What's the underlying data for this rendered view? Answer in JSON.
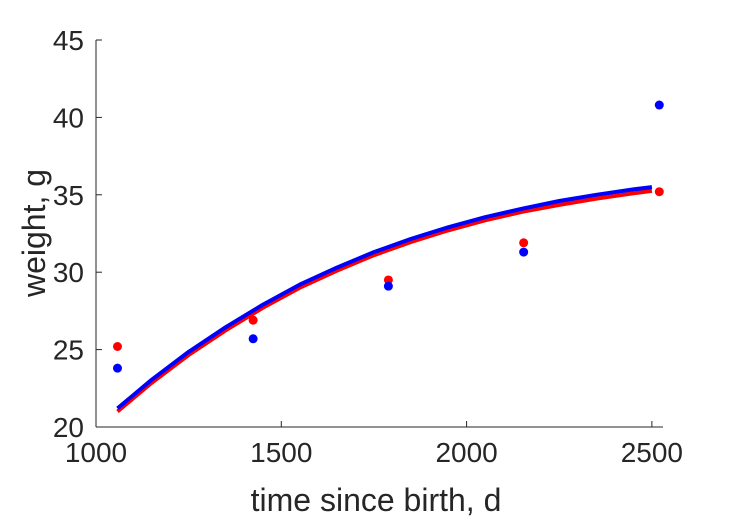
{
  "chart_data": {
    "type": "scatter",
    "title": "",
    "xlabel": "time since birth, d",
    "ylabel": "weight, g",
    "xlim": [
      1000,
      2530
    ],
    "ylim": [
      20,
      45
    ],
    "x_ticks": [
      1000,
      1500,
      2000,
      2500
    ],
    "y_ticks": [
      20,
      25,
      30,
      35,
      40,
      45
    ],
    "grid": false,
    "legend": "none",
    "series": [
      {
        "kind": "points",
        "color": "#ff0000",
        "x": [
          1058,
          1424,
          1789,
          2154,
          2520
        ],
        "y": [
          25.2,
          26.9,
          29.5,
          31.9,
          35.2
        ]
      },
      {
        "kind": "points",
        "color": "#0000ff",
        "x": [
          1058,
          1424,
          1789,
          2154,
          2520
        ],
        "y": [
          23.8,
          25.7,
          29.1,
          31.3,
          40.8
        ]
      },
      {
        "kind": "line",
        "color": "#ff0000",
        "x": [
          1058,
          1150,
          1250,
          1350,
          1450,
          1550,
          1650,
          1750,
          1850,
          1950,
          2050,
          2150,
          2250,
          2350,
          2450,
          2500
        ],
        "y": [
          21.0,
          22.85,
          24.65,
          26.25,
          27.7,
          29.0,
          30.1,
          31.1,
          31.95,
          32.7,
          33.35,
          33.9,
          34.35,
          34.75,
          35.1,
          35.25
        ]
      },
      {
        "kind": "line",
        "color": "#0000ff",
        "x": [
          1058,
          1150,
          1250,
          1350,
          1450,
          1550,
          1650,
          1750,
          1850,
          1950,
          2050,
          2150,
          2250,
          2350,
          2450,
          2500
        ],
        "y": [
          21.2,
          23.05,
          24.85,
          26.45,
          27.9,
          29.2,
          30.3,
          31.3,
          32.15,
          32.9,
          33.55,
          34.1,
          34.6,
          35.0,
          35.35,
          35.5
        ]
      }
    ]
  }
}
